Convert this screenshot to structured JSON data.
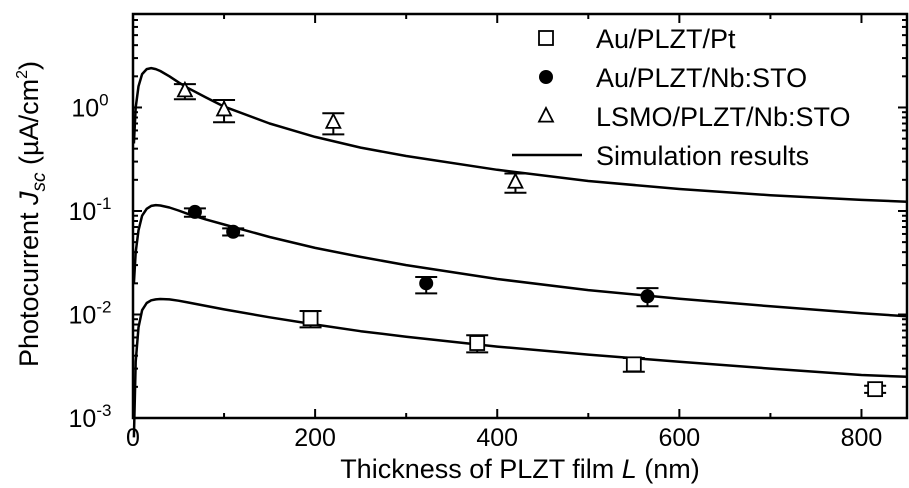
{
  "chart_data": {
    "type": "scatter",
    "xlabel_main": "Thickness of PLZT film ",
    "xlabel_var": "L",
    "xlabel_unit": " (nm)",
    "ylabel_main": "Photocurrent ",
    "ylabel_var": "J",
    "ylabel_sub": "sc",
    "ylabel_unit_pre": " (",
    "ylabel_unit_mu": "µ",
    "ylabel_unit_a": "A/cm",
    "ylabel_unit_exp": "2",
    "ylabel_unit_post": ")",
    "xlim": [
      0,
      850
    ],
    "ylim": [
      0.001,
      8
    ],
    "yscale": "log",
    "x_ticks": [
      0,
      200,
      400,
      600,
      800
    ],
    "x_tick_labels": [
      "0",
      "200",
      "400",
      "600",
      "800"
    ],
    "y_ticks": [
      {
        "value": 0.001,
        "base": "10",
        "exp": "-3"
      },
      {
        "value": 0.01,
        "base": "10",
        "exp": "-2"
      },
      {
        "value": 0.1,
        "base": "10",
        "exp": "-1"
      },
      {
        "value": 1,
        "base": "10",
        "exp": "0"
      }
    ],
    "legend_position": "top-right",
    "legend": [
      {
        "label": "Au/PLZT/Pt",
        "marker": "open-square"
      },
      {
        "label": "Au/PLZT/Nb:STO",
        "marker": "filled-circle"
      },
      {
        "label": "LSMO/PLZT/Nb:STO",
        "marker": "open-triangle"
      },
      {
        "label": "Simulation results",
        "marker": "line"
      }
    ],
    "series": [
      {
        "name": "Au/PLZT/Pt",
        "marker": "open-square",
        "x": [
          195,
          378,
          550,
          815
        ],
        "y": [
          0.0092,
          0.0053,
          0.0033,
          0.0019
        ],
        "err_low": [
          0.0075,
          0.0043,
          0.0028,
          0.00175
        ],
        "err_high": [
          0.0108,
          0.0063,
          0.0038,
          0.00205
        ]
      },
      {
        "name": "Au/PLZT/Nb:STO",
        "marker": "filled-circle",
        "x": [
          68,
          110,
          322,
          565
        ],
        "y": [
          0.098,
          0.063,
          0.02,
          0.015
        ],
        "err_low": [
          0.088,
          0.058,
          0.016,
          0.012
        ],
        "err_high": [
          0.106,
          0.068,
          0.023,
          0.018
        ]
      },
      {
        "name": "LSMO/PLZT/Nb:STO",
        "marker": "open-triangle",
        "x": [
          57,
          100,
          220,
          420
        ],
        "y": [
          1.45,
          0.95,
          0.72,
          0.19
        ],
        "err_low": [
          1.2,
          0.72,
          0.55,
          0.15
        ],
        "err_high": [
          1.68,
          1.18,
          0.88,
          0.23
        ]
      }
    ],
    "simulation_curves": [
      {
        "x": [
          1,
          3,
          6,
          10,
          15,
          20,
          25,
          30,
          40,
          50,
          60,
          80,
          100,
          150,
          200,
          250,
          300,
          400,
          500,
          600,
          700,
          800,
          850
        ],
        "y": [
          0.00065,
          0.0035,
          0.0075,
          0.011,
          0.0129,
          0.0137,
          0.014,
          0.0141,
          0.014,
          0.0136,
          0.0131,
          0.0121,
          0.0112,
          0.0094,
          0.008,
          0.0069,
          0.0061,
          0.0049,
          0.0041,
          0.0035,
          0.003,
          0.0026,
          0.0025
        ]
      },
      {
        "x": [
          1,
          3,
          6,
          10,
          15,
          20,
          25,
          30,
          40,
          50,
          60,
          80,
          100,
          150,
          200,
          250,
          300,
          400,
          500,
          600,
          700,
          800,
          850
        ],
        "y": [
          0.02,
          0.04,
          0.065,
          0.09,
          0.105,
          0.112,
          0.114,
          0.113,
          0.108,
          0.101,
          0.094,
          0.083,
          0.074,
          0.056,
          0.044,
          0.036,
          0.03,
          0.022,
          0.0172,
          0.0142,
          0.012,
          0.0103,
          0.0096
        ]
      },
      {
        "x": [
          1,
          3,
          6,
          10,
          15,
          20,
          25,
          30,
          40,
          50,
          60,
          80,
          100,
          150,
          200,
          250,
          300,
          400,
          500,
          600,
          700,
          800,
          850
        ],
        "y": [
          0.45,
          1.0,
          1.6,
          2.1,
          2.35,
          2.4,
          2.35,
          2.25,
          2.0,
          1.75,
          1.55,
          1.25,
          1.02,
          0.7,
          0.52,
          0.41,
          0.34,
          0.25,
          0.195,
          0.163,
          0.142,
          0.128,
          0.123
        ]
      }
    ]
  }
}
